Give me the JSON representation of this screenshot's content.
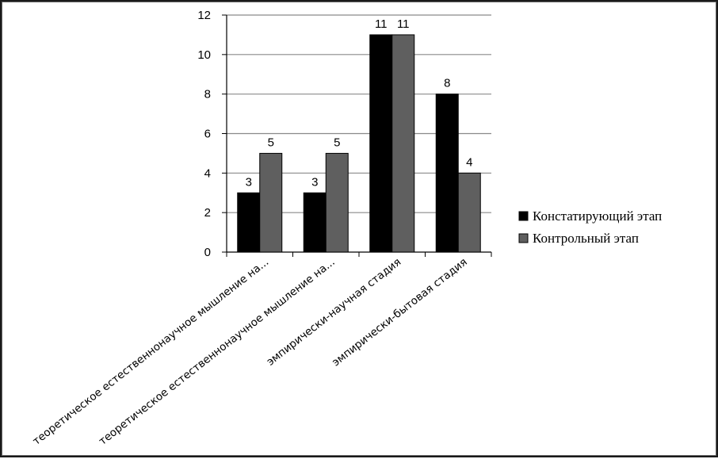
{
  "chart_data": {
    "type": "bar",
    "categories": [
      "теоретическое естественнонаучное мышление на...",
      "теоретическое естественнонаучное мышление на...",
      "эмпирически-научная стадия",
      "эмпирически-бытовая стадия"
    ],
    "series": [
      {
        "name": "Констатирующий этап",
        "values": [
          3,
          3,
          11,
          8
        ],
        "color": "#000000"
      },
      {
        "name": "Контрольный этап",
        "values": [
          5,
          5,
          11,
          4
        ],
        "color": "#5f5f5f"
      }
    ],
    "yticks": [
      0,
      2,
      4,
      6,
      8,
      10,
      12
    ],
    "ylim": [
      0,
      12
    ],
    "grid": true,
    "legend": "right",
    "data_labels": true
  }
}
